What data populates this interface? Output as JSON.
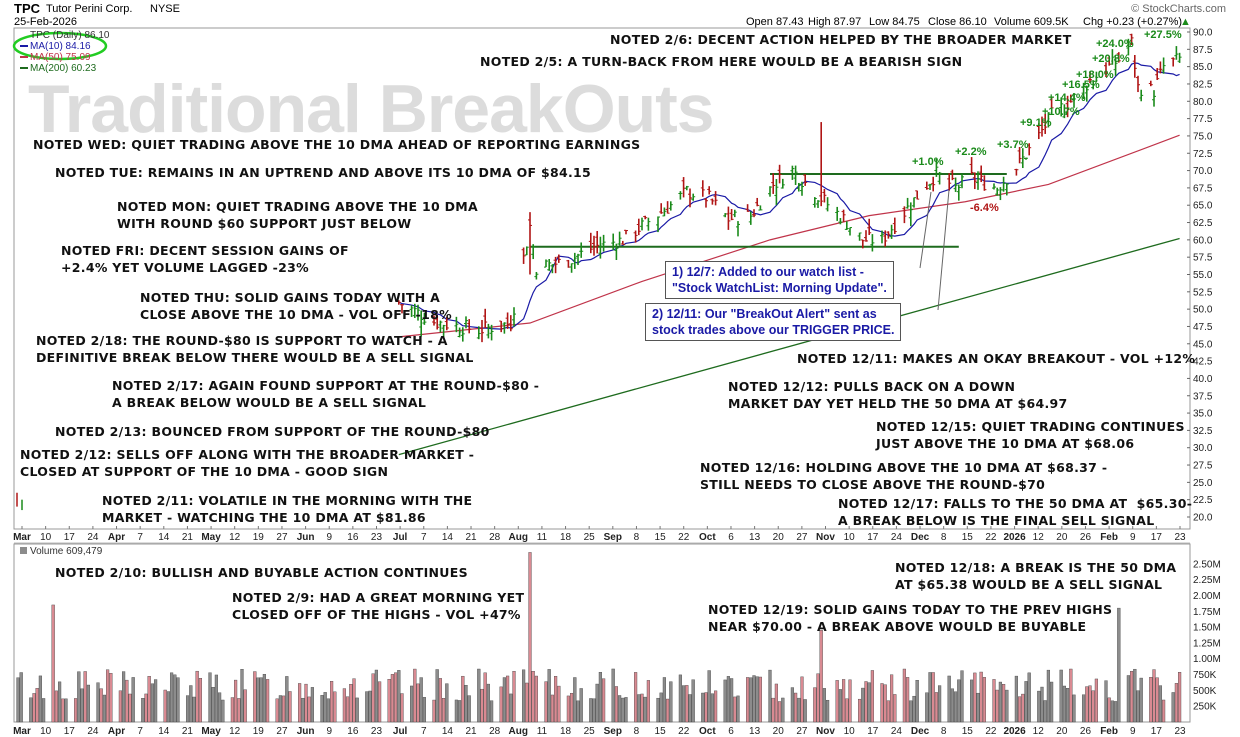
{
  "header": {
    "ticker": "TPC",
    "company": "Tutor Perini Corp.",
    "exchange": "NYSE",
    "date": "25-Feb-2026",
    "open": "Open 87.43",
    "high": "High 87.97",
    "low": "Low 84.75",
    "close": "Close 86.10",
    "volume": "Volume 609.5K",
    "chg": "Chg +0.23 (+0.27%)",
    "chg_arrow": "▲",
    "source": "© StockCharts.com"
  },
  "legend": {
    "price": "TPC (Daily) 86.10",
    "ma10": "MA(10) 84.16",
    "ma50": "MA(50) 75.09",
    "ma200": "MA(200) 60.23",
    "volume": "Volume 609,479"
  },
  "watermark": "Traditional BreakOuts",
  "notes": {
    "n_2_6": "NOTED 2/6: DECENT ACTION HELPED BY THE BROADER MARKET",
    "n_2_5": "NOTED 2/5: A TURN-BACK FROM HERE WOULD BE A BEARISH SIGN",
    "n_wed": "NOTED WED: QUIET TRADING ABOVE THE 10 DMA AHEAD OF REPORTING EARNINGS",
    "n_tue": "NOTED TUE: REMAINS IN AN UPTREND AND ABOVE ITS 10 DMA OF $84.15",
    "n_mon": "NOTED MON: QUIET TRADING ABOVE THE 10 DMA\nWITH ROUND $60 SUPPORT JUST BELOW",
    "n_fri": "NOTED FRI: DECENT SESSION GAINS OF\n+2.4% YET VOLUME LAGGED -23%",
    "n_thu": "NOTED THU: SOLID GAINS TODAY WITH A\nCLOSE ABOVE THE 10 DMA - VOL OFF -18%",
    "n_2_18": "NOTED 2/18: THE ROUND-$80 IS SUPPORT TO WATCH - A\nDEFINITIVE BREAK BELOW THERE WOULD BE A SELL SIGNAL",
    "n_2_17": "NOTED 2/17: AGAIN FOUND SUPPORT AT THE ROUND-$80 -\nA BREAK BELOW WOULD BE A SELL SIGNAL",
    "n_2_13": "NOTED 2/13: BOUNCED FROM SUPPORT OF THE ROUND-$80",
    "n_2_12": "NOTED 2/12: SELLS OFF ALONG WITH THE BROADER MARKET -\nCLOSED AT SUPPORT OF THE 10 DMA - GOOD SIGN",
    "n_2_11": "NOTED 2/11: VOLATILE IN THE MORNING WITH THE\nMARKET - WATCHING THE 10 DMA AT $81.86",
    "n_12_11": "NOTED 12/11: MAKES AN OKAY BREAKOUT - VOL +12%",
    "n_12_12": "NOTED 12/12: PULLS BACK ON A DOWN\nMARKET DAY YET HELD THE 50 DMA AT $64.97",
    "n_12_15": "NOTED 12/15: QUIET TRADING CONTINUES\nJUST ABOVE THE 10 DMA AT $68.06",
    "n_12_16": "NOTED 12/16: HOLDING ABOVE THE 10 DMA AT $68.37 -\nSTILL NEEDS TO CLOSE ABOVE THE ROUND-$70",
    "n_12_17": "NOTED 12/17: FALLS TO THE 50 DMA AT  $65.30-\nA BREAK BELOW IS THE FINAL SELL SIGNAL",
    "n_2_10": "NOTED 2/10: BULLISH AND BUYABLE ACTION CONTINUES",
    "n_2_9": "NOTED 2/9: HAD A GREAT MORNING YET\nCLOSED OFF OF THE HIGHS - VOL +47%",
    "n_12_18": "NOTED 12/18: A BREAK IS THE 50 DMA\nAT $65.38 WOULD BE A SELL SIGNAL",
    "n_12_19": "NOTED 12/19: SOLID GAINS TODAY TO THE PREV HIGHS\nNEAR $70.00 - A BREAK ABOVE WOULD BE BUYABLE"
  },
  "callouts": {
    "c1": "1) 12/7: Added to our watch list -\n\"Stock WatchList: Morning Update\".",
    "c2": "2) 12/11: Our \"BreakOut Alert\" sent as\nstock trades above our TRIGGER PRICE."
  },
  "pct_labels": {
    "p1": "+1.0%",
    "p2": "+2.2%",
    "p3": "+3.7%",
    "p4": "+9.1%",
    "p5": "+10.7%",
    "p6": "+14.4%",
    "p7": "+16.5%",
    "p8": "+18.0%",
    "p9": "+20.8%",
    "p10": "+24.0%",
    "p11": "+27.5%",
    "n1": "-6.4%"
  },
  "colors": {
    "up": "#1a8a1a",
    "down": "#b01515",
    "ma10": "#1a1aa6",
    "ma50": "#c0344a",
    "ma200": "#1e6b1e",
    "vol_up": "#8c8c8c",
    "vol_down": "#d98a92",
    "resistance": "#1e6b1e",
    "highlight_circle": "#22cc22",
    "callout_text": "#1a1aa6",
    "pct_up": "#1a8a1a",
    "pct_down": "#b01515"
  },
  "chart_data": {
    "type": "candlestick",
    "price_axis": {
      "min": 20,
      "max": 90,
      "ticks": [
        "90.0",
        "87.5",
        "85.0",
        "82.5",
        "80.0",
        "77.5",
        "75.0",
        "72.5",
        "70.0",
        "67.5",
        "65.0",
        "62.5",
        "60.0",
        "57.5",
        "55.0",
        "52.5",
        "50.0",
        "47.5",
        "45.0",
        "42.5",
        "40.0",
        "37.5",
        "35.0",
        "32.5",
        "30.0",
        "27.5",
        "25.0",
        "22.5",
        "20.0"
      ]
    },
    "volume_axis": {
      "min": 0,
      "max": 2750000,
      "ticks": [
        "2.50M",
        "2.25M",
        "2.00M",
        "1.75M",
        "1.50M",
        "1.25M",
        "1.00M",
        "750K",
        "500K",
        "250K"
      ]
    },
    "x_labels": [
      "Mar",
      "10",
      "17",
      "24",
      "Apr",
      "7",
      "14",
      "21",
      "May",
      "12",
      "19",
      "27",
      "Jun",
      "9",
      "16",
      "23",
      "Jul",
      "7",
      "14",
      "21",
      "28",
      "Aug",
      "11",
      "18",
      "25",
      "Sep",
      "8",
      "15",
      "22",
      "Oct",
      "6",
      "13",
      "20",
      "27",
      "Nov",
      "10",
      "17",
      "24",
      "Dec",
      "8",
      "15",
      "22",
      "2026",
      "12",
      "20",
      "26",
      "Feb",
      "9",
      "17",
      "23"
    ],
    "price_path": [
      [
        "2025-06-26",
        51.0
      ],
      [
        "2025-07-07",
        48.2
      ],
      [
        "2025-07-21",
        47.0
      ],
      [
        "2025-07-31",
        48.0
      ],
      [
        "2025-08-06",
        62.0
      ],
      [
        "2025-08-08",
        56.0
      ],
      [
        "2025-08-18",
        57.0
      ],
      [
        "2025-08-26",
        59.0
      ],
      [
        "2025-09-04",
        60.0
      ],
      [
        "2025-09-10",
        62.0
      ],
      [
        "2025-09-19",
        65.0
      ],
      [
        "2025-09-24",
        67.0
      ],
      [
        "2025-10-01",
        66.0
      ],
      [
        "2025-10-07",
        63.0
      ],
      [
        "2025-10-14",
        63.5
      ],
      [
        "2025-10-21",
        68.0
      ],
      [
        "2025-10-27",
        70.0
      ],
      [
        "2025-11-05",
        66.0
      ],
      [
        "2025-11-12",
        63.0
      ],
      [
        "2025-11-18",
        60.0
      ],
      [
        "2025-11-24",
        60.0
      ],
      [
        "2025-12-01",
        64.0
      ],
      [
        "2025-12-07",
        67.5
      ],
      [
        "2025-12-11",
        69.5
      ],
      [
        "2025-12-17",
        67.5
      ],
      [
        "2025-12-22",
        69.0
      ],
      [
        "2025-12-30",
        67.5
      ],
      [
        "2026-01-02",
        69.0
      ],
      [
        "2026-01-06",
        71.0
      ],
      [
        "2026-01-12",
        75.0
      ],
      [
        "2026-01-16",
        78.0
      ],
      [
        "2026-01-22",
        80.0
      ],
      [
        "2026-01-28",
        83.0
      ],
      [
        "2026-02-03",
        85.0
      ],
      [
        "2026-02-06",
        86.0
      ],
      [
        "2026-02-10",
        88.5
      ],
      [
        "2026-02-12",
        82.0
      ],
      [
        "2026-02-17",
        81.5
      ],
      [
        "2026-02-20",
        85.0
      ],
      [
        "2026-02-25",
        86.1
      ]
    ],
    "resistance_lines": [
      {
        "from": "2025-10-20",
        "to": "2026-01-02",
        "value": 69.5
      },
      {
        "from": "2025-08-06",
        "to": "2025-12-18",
        "value": 59.0
      }
    ],
    "ma200_range": {
      "start": 29.0,
      "end": 60.2
    },
    "ma50_range": {
      "start": 46.0,
      "end": 75.1
    },
    "volume_peaks": [
      {
        "date": "2025-03-10",
        "value": 1850000
      },
      {
        "date": "2025-08-06",
        "value": 2680000
      },
      {
        "date": "2025-11-05",
        "value": 1450000
      },
      {
        "date": "2026-02-06",
        "value": 1800000
      }
    ]
  }
}
